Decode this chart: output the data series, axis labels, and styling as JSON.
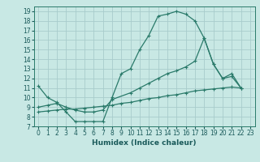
{
  "xlabel": "Humidex (Indice chaleur)",
  "bg_color": "#c8e8e4",
  "line_color": "#2a7a6a",
  "grid_color": "#a8cccc",
  "xlim": [
    -0.5,
    23.5
  ],
  "ylim": [
    7,
    19.5
  ],
  "xticks": [
    0,
    1,
    2,
    3,
    4,
    5,
    6,
    7,
    8,
    9,
    10,
    11,
    12,
    13,
    14,
    15,
    16,
    17,
    18,
    19,
    20,
    21,
    22,
    23
  ],
  "yticks": [
    7,
    8,
    9,
    10,
    11,
    12,
    13,
    14,
    15,
    16,
    17,
    18,
    19
  ],
  "curve1_x": [
    0,
    1,
    2,
    3,
    4,
    5,
    6,
    7,
    8,
    9,
    10,
    11,
    12,
    13,
    14,
    15,
    16,
    17,
    18,
    19,
    20,
    21,
    22
  ],
  "curve1_y": [
    11.2,
    10.0,
    9.5,
    8.5,
    7.5,
    7.5,
    7.5,
    7.5,
    10.0,
    12.5,
    13.0,
    15.0,
    16.5,
    18.5,
    18.7,
    19.0,
    18.7,
    18.0,
    16.2,
    13.5,
    12.0,
    12.5,
    11.0
  ],
  "curve2_x": [
    0,
    1,
    2,
    3,
    4,
    5,
    6,
    7,
    8,
    10,
    11,
    12,
    13,
    14,
    15,
    16,
    17,
    18,
    19,
    20,
    21,
    22
  ],
  "curve2_y": [
    9.0,
    9.2,
    9.4,
    9.0,
    8.7,
    8.5,
    8.5,
    8.7,
    9.8,
    10.5,
    11.0,
    11.5,
    12.0,
    12.5,
    12.8,
    13.2,
    13.8,
    16.2,
    13.5,
    12.0,
    12.2,
    11.0
  ],
  "curve3_x": [
    0,
    1,
    2,
    3,
    4,
    5,
    6,
    7,
    8,
    9,
    10,
    11,
    12,
    13,
    14,
    15,
    16,
    17,
    18,
    19,
    20,
    21,
    22
  ],
  "curve3_y": [
    8.5,
    8.6,
    8.7,
    8.8,
    8.8,
    8.9,
    9.0,
    9.1,
    9.2,
    9.4,
    9.5,
    9.7,
    9.9,
    10.0,
    10.2,
    10.3,
    10.5,
    10.7,
    10.8,
    10.9,
    11.0,
    11.1,
    11.0
  ],
  "tick_fontsize": 5.5,
  "xlabel_fontsize": 6.5
}
